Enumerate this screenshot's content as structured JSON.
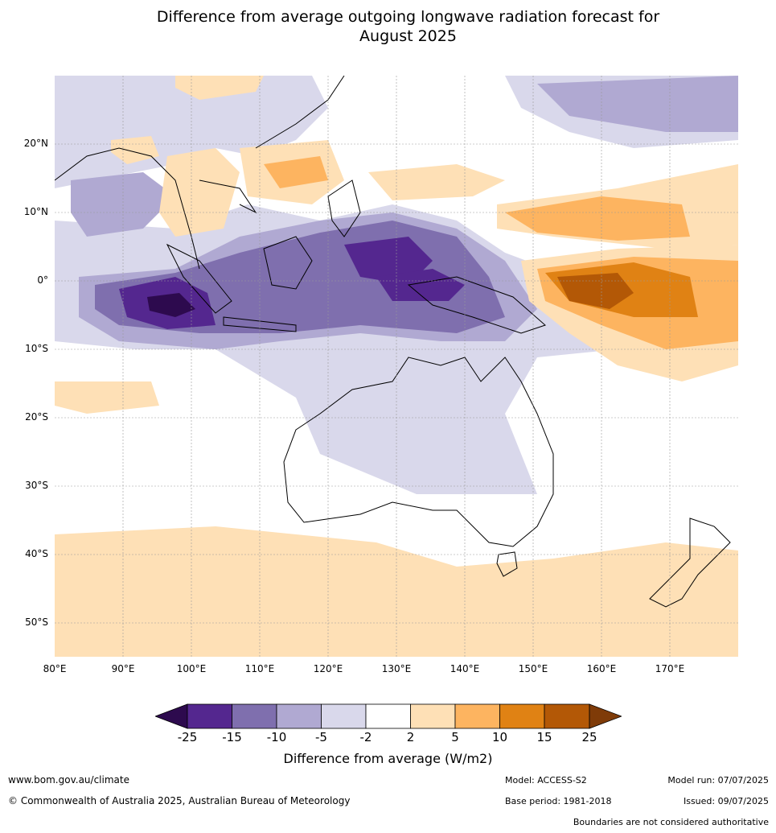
{
  "title": "Difference from average outgoing longwave radiation forecast for August 2025",
  "title_lines": [
    "Difference from average outgoing longwave radiation forecast for",
    "August 2025"
  ],
  "lat_labels": [
    "20°N",
    "10°N",
    "0°",
    "10°S",
    "20°S",
    "30°S",
    "40°S",
    "50°S"
  ],
  "lon_labels": [
    "80°E",
    "90°E",
    "100°E",
    "110°E",
    "120°E",
    "130°E",
    "140°E",
    "150°E",
    "160°E",
    "170°E"
  ],
  "colorbar": {
    "ticks": [
      "-25",
      "-15",
      "-10",
      "-5",
      "-2",
      "2",
      "5",
      "10",
      "15",
      "25"
    ],
    "colors": [
      "#2d0a4e",
      "#54278f",
      "#7f6fae",
      "#b0a9d2",
      "#d9d8eb",
      "#ffffff",
      "#fee0b6",
      "#fdb460",
      "#e08214",
      "#b35806",
      "#7f3b08"
    ],
    "title": "Difference from average (W/m2)"
  },
  "colors": {
    "strong_negative": "#2d0a4e",
    "neg_25_15": "#54278f",
    "neg_15_10": "#7f6fae",
    "neg_10_5": "#b0a9d2",
    "neg_5_2": "#d9d8eb",
    "neutral": "#ffffff",
    "pos_2_5": "#fee0b6",
    "pos_5_10": "#fdb460",
    "pos_10_15": "#e08214",
    "pos_15_25": "#b35806"
  },
  "footer": {
    "website": "www.bom.gov.au/climate",
    "copyright": "© Commonwealth of Australia 2025, Australian Bureau of Meteorology",
    "model": "Model: ACCESS-S2",
    "model_run": "Model run: 07/07/2025",
    "base_period": "Base period: 1981-2018",
    "issued": "Issued: 09/07/2025",
    "disclaimer": "Boundaries are not considered authoritative"
  }
}
